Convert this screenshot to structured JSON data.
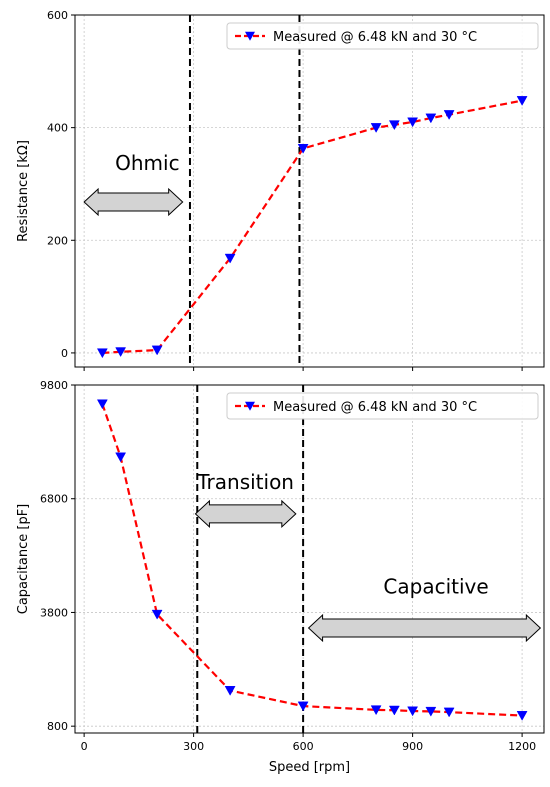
{
  "chart_data": [
    {
      "type": "line",
      "xlabel": "",
      "ylabel": "Resistance [kΩ]",
      "xlim": [
        -25,
        1260
      ],
      "ylim": [
        -25,
        600
      ],
      "xticks": [
        0,
        300,
        600,
        900,
        1200
      ],
      "xtick_labels": [
        "",
        "",
        "",
        "",
        ""
      ],
      "yticks": [
        0,
        200,
        400,
        600
      ],
      "ytick_labels": [
        "0",
        "200",
        "400",
        "600"
      ],
      "grid": true,
      "legend_position": "top-right",
      "series": [
        {
          "name": "Measured @ 6.48 kN and 30 °C",
          "color": "#ff0000",
          "marker_color": "#0000ff",
          "marker": "triangle-down",
          "x": [
            50,
            100,
            200,
            400,
            600,
            800,
            850,
            900,
            950,
            1000,
            1200
          ],
          "y": [
            0,
            2,
            5,
            168,
            363,
            400,
            405,
            410,
            417,
            423,
            448
          ]
        }
      ],
      "vlines": [
        290,
        590
      ],
      "annotations": [
        {
          "text": "Ohmic",
          "x": 85,
          "y": 325,
          "arrow": {
            "x1": 0,
            "x2": 270,
            "y": 268
          }
        }
      ]
    },
    {
      "type": "line",
      "xlabel": "Speed [rpm]",
      "ylabel": "Capacitance [pF]",
      "xlim": [
        -25,
        1260
      ],
      "ylim": [
        620,
        9800
      ],
      "xticks": [
        0,
        300,
        600,
        900,
        1200
      ],
      "xtick_labels": [
        "0",
        "300",
        "600",
        "900",
        "1200"
      ],
      "yticks": [
        800,
        3800,
        6800,
        9800
      ],
      "ytick_labels": [
        "800",
        "3800",
        "6800",
        "9800"
      ],
      "grid": true,
      "legend_position": "top-right",
      "series": [
        {
          "name": "Measured @ 6.48 kN and 30 °C",
          "color": "#ff0000",
          "marker_color": "#0000ff",
          "marker": "triangle-down",
          "x": [
            50,
            100,
            200,
            400,
            600,
            800,
            850,
            900,
            950,
            1000,
            1200
          ],
          "y": [
            9300,
            7900,
            3750,
            1740,
            1330,
            1230,
            1220,
            1200,
            1190,
            1170,
            1080
          ]
        }
      ],
      "vlines": [
        310,
        600
      ],
      "annotations": [
        {
          "text": "Transition",
          "x": 310,
          "y": 7050,
          "arrow": {
            "x1": 305,
            "x2": 580,
            "y": 6400
          }
        },
        {
          "text": "Capacitive",
          "x": 820,
          "y": 4300,
          "arrow": {
            "x1": 615,
            "x2": 1250,
            "y": 3390
          }
        }
      ]
    }
  ]
}
